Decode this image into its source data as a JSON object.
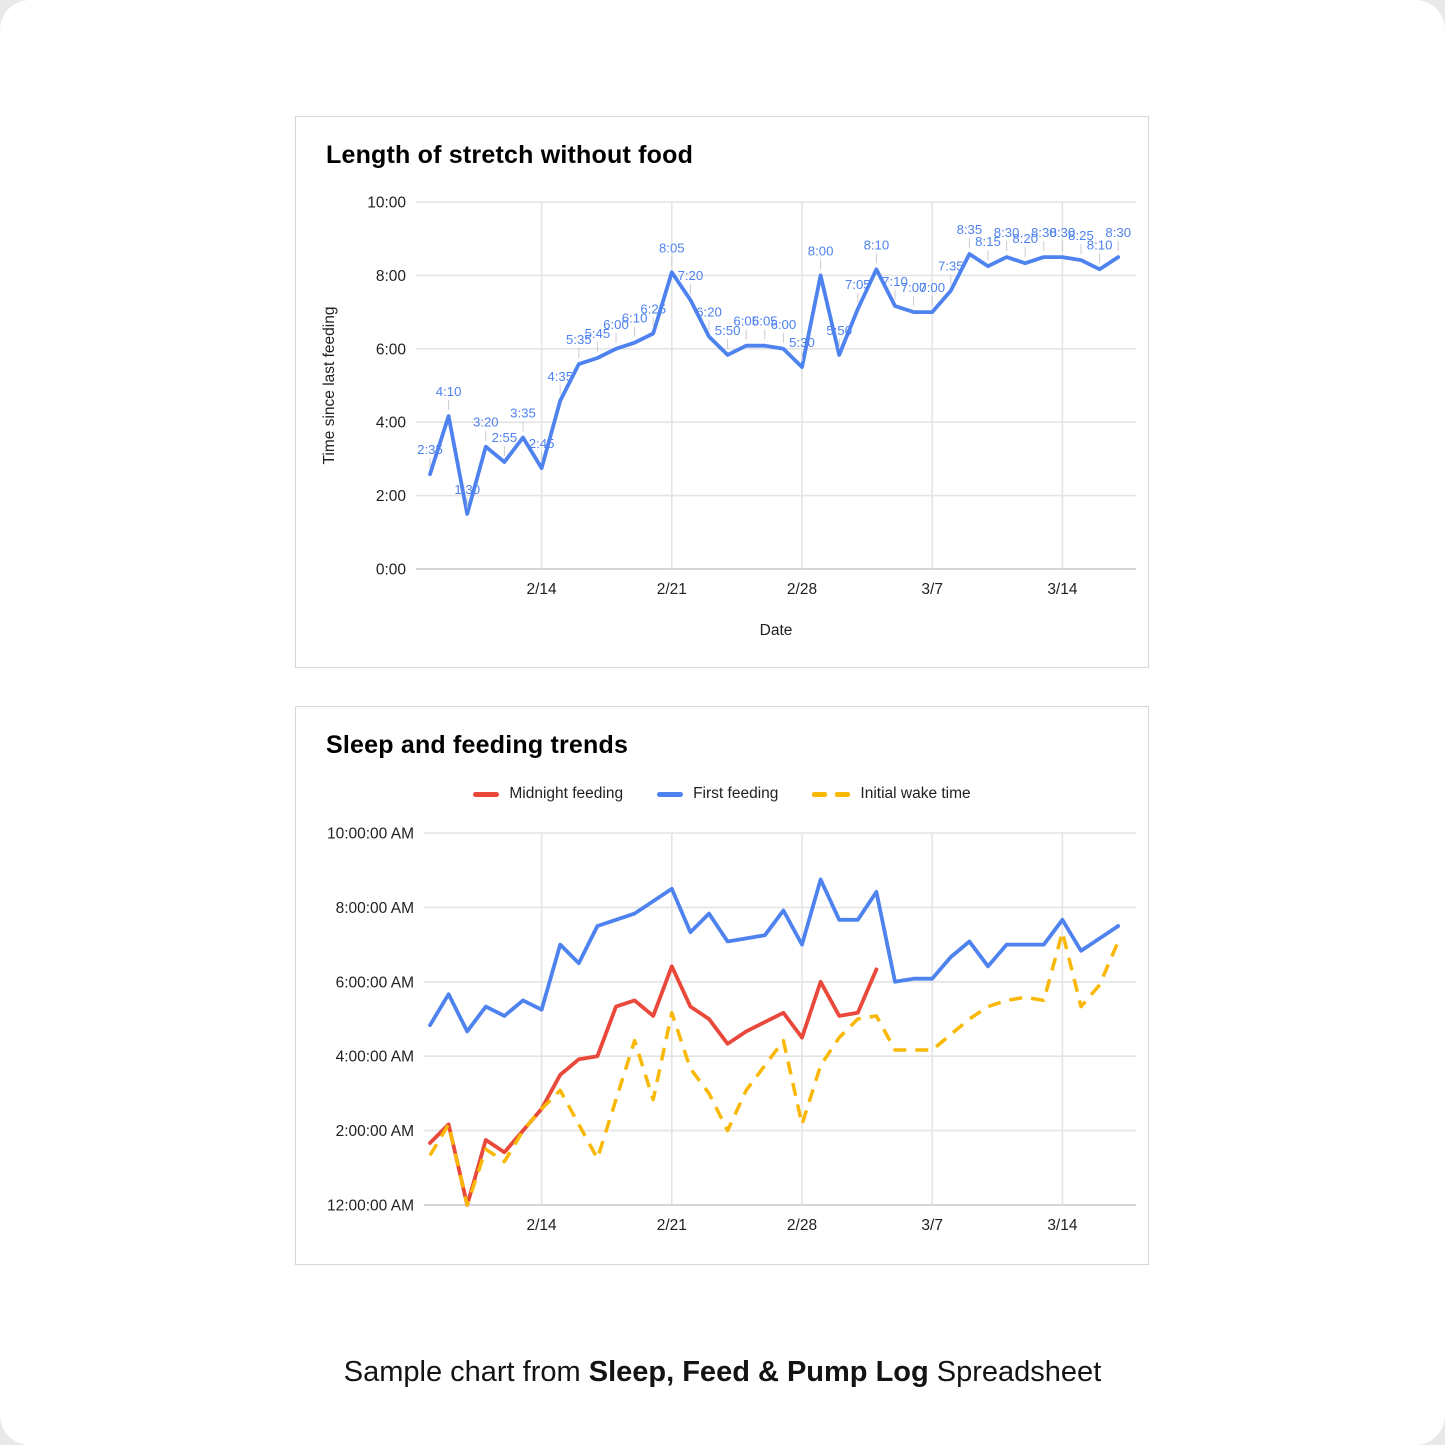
{
  "page": {
    "caption_prefix": "Sample chart from ",
    "caption_bold": "Sleep, Feed & Pump Log",
    "caption_suffix": " Spreadsheet"
  },
  "colors": {
    "series_blue": "#4e82ee",
    "series_red": "#e9483b",
    "series_yellow": "#f9b805",
    "gridline": "#e4e4e4",
    "baseline": "#c9c9c9",
    "tick_text": "#1f1f1f",
    "leader": "#cccccc"
  },
  "chart_data": [
    {
      "type": "line",
      "title": "Length of stretch without food",
      "xlabel": "Date",
      "ylabel": "Time since last feeding",
      "grid": true,
      "legend_position": "none",
      "ylim": [
        0,
        10
      ],
      "y_tick_labels": [
        "0:00",
        "2:00",
        "4:00",
        "6:00",
        "8:00",
        "10:00"
      ],
      "x_ticks": [
        {
          "label": "2/14",
          "index": 6
        },
        {
          "label": "2/21",
          "index": 13
        },
        {
          "label": "2/28",
          "index": 20
        },
        {
          "label": "3/7",
          "index": 27
        },
        {
          "label": "3/14",
          "index": 34
        }
      ],
      "dates": [
        "2/8",
        "2/9",
        "2/10",
        "2/11",
        "2/12",
        "2/13",
        "2/14",
        "2/15",
        "2/16",
        "2/17",
        "2/18",
        "2/19",
        "2/20",
        "2/21",
        "2/22",
        "2/23",
        "2/24",
        "2/25",
        "2/26",
        "2/27",
        "2/28",
        "3/1",
        "3/2",
        "3/3",
        "3/4",
        "3/5",
        "3/6",
        "3/7",
        "3/8",
        "3/9",
        "3/10",
        "3/11",
        "3/12",
        "3/13",
        "3/14",
        "3/15",
        "3/16",
        "3/17"
      ],
      "data_labels": true,
      "series": [
        {
          "name": "Time since last feeding",
          "color": "#4e82ee",
          "style": "solid",
          "values": [
            "2:35",
            "4:10",
            "1:30",
            "3:20",
            "2:55",
            "3:35",
            "2:45",
            "4:35",
            "5:35",
            "5:45",
            "6:00",
            "6:10",
            "6:25",
            "8:05",
            "7:20",
            "6:20",
            "5:50",
            "6:05",
            "6:05",
            "6:00",
            "5:30",
            "8:00",
            "5:50",
            "7:05",
            "8:10",
            "7:10",
            "7:00",
            "7:00",
            "7:35",
            "8:35",
            "8:15",
            "8:30",
            "8:20",
            "8:30",
            "8:30",
            "8:25",
            "8:10",
            "8:30"
          ]
        }
      ]
    },
    {
      "type": "line",
      "title": "Sleep and feeding trends",
      "xlabel": "",
      "ylabel": "",
      "grid": true,
      "legend_position": "top",
      "ylim": [
        0,
        10
      ],
      "y_tick_labels": [
        "12:00:00 AM",
        "2:00:00 AM",
        "4:00:00 AM",
        "6:00:00 AM",
        "8:00:00 AM",
        "10:00:00 AM"
      ],
      "x_ticks": [
        {
          "label": "2/14",
          "index": 6
        },
        {
          "label": "2/21",
          "index": 13
        },
        {
          "label": "2/28",
          "index": 20
        },
        {
          "label": "3/7",
          "index": 27
        },
        {
          "label": "3/14",
          "index": 34
        }
      ],
      "dates": [
        "2/8",
        "2/9",
        "2/10",
        "2/11",
        "2/12",
        "2/13",
        "2/14",
        "2/15",
        "2/16",
        "2/17",
        "2/18",
        "2/19",
        "2/20",
        "2/21",
        "2/22",
        "2/23",
        "2/24",
        "2/25",
        "2/26",
        "2/27",
        "2/28",
        "3/1",
        "3/2",
        "3/3",
        "3/4",
        "3/5",
        "3/6",
        "3/7",
        "3/8",
        "3/9",
        "3/10",
        "3/11",
        "3/12",
        "3/13",
        "3/14",
        "3/15",
        "3/16",
        "3/17"
      ],
      "data_labels": false,
      "series": [
        {
          "name": "Midnight feeding",
          "color": "#e9483b",
          "style": "solid",
          "values": [
            "1:40",
            "2:10",
            "12:00",
            "1:45",
            "1:25",
            "2:00",
            "2:35",
            "3:30",
            "3:55",
            "4:00",
            "5:20",
            "5:30",
            "5:05",
            "6:25",
            "5:20",
            "5:00",
            "4:20",
            "4:40",
            "4:55",
            "5:10",
            "4:30",
            "6:00",
            "5:05",
            "5:10",
            "6:20",
            null,
            null,
            null,
            null,
            null,
            null,
            null,
            null,
            null,
            null,
            null,
            null,
            null
          ]
        },
        {
          "name": "First feeding",
          "color": "#4e82ee",
          "style": "solid",
          "values": [
            "4:50",
            "5:40",
            "4:40",
            "5:20",
            "5:05",
            "5:30",
            "5:15",
            "7:00",
            "6:30",
            "7:30",
            "7:40",
            "7:50",
            "8:10",
            "8:30",
            "7:20",
            "7:50",
            "7:05",
            "7:10",
            "7:15",
            "7:55",
            "7:00",
            "8:45",
            "7:40",
            "7:40",
            "8:25",
            "6:00",
            "6:05",
            "6:05",
            "6:40",
            "7:05",
            "6:25",
            "7:00",
            "7:00",
            "7:00",
            "7:40",
            "6:50",
            "7:10",
            "7:30"
          ]
        },
        {
          "name": "Initial wake time",
          "color": "#f9b805",
          "style": "dashed",
          "values": [
            "1:20",
            "2:10",
            "12:00",
            "1:30",
            "1:10",
            "2:00",
            "2:35",
            "3:05",
            "2:10",
            "1:15",
            "2:50",
            "4:25",
            "2:50",
            "5:10",
            "3:40",
            "3:00",
            "2:00",
            "3:05",
            "3:45",
            "4:25",
            "2:10",
            "3:45",
            "4:30",
            "5:00",
            "5:05",
            "4:10",
            "4:10",
            "4:10",
            "4:35",
            "5:00",
            "5:20",
            "5:30",
            "5:35",
            "5:30",
            "7:20",
            "5:20",
            "5:55",
            "7:05"
          ]
        }
      ]
    }
  ]
}
